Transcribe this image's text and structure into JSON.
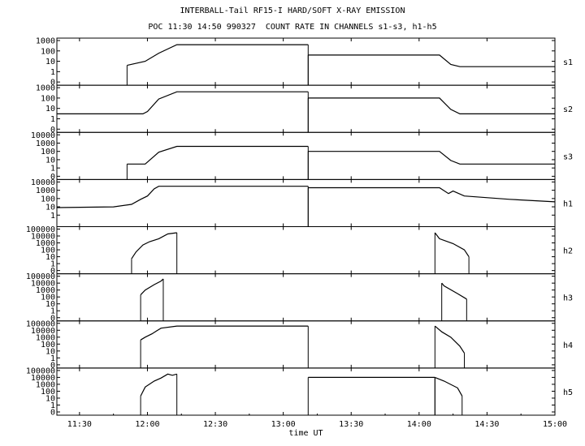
{
  "title": "INTERBALL-Tail RF15-I HARD/SOFT X-RAY EMISSION",
  "subtitle": "POC 11:30 14:50 990327  COUNT RATE IN CHANNELS s1-s3, h1-h5",
  "chart_data": {
    "type": "line",
    "xlabel": "time UT",
    "x_tick_labels": [
      "11:30",
      "12:00",
      "12:30",
      "13:00",
      "13:30",
      "14:00",
      "14:30",
      "15:00"
    ],
    "xlim": [
      "11:20",
      "15:00"
    ],
    "y_scale": "log",
    "grid": false,
    "panels": [
      {
        "name": "s1",
        "yticks": [
          "1000",
          "100",
          "10",
          "1",
          "0"
        ],
        "segments": [
          {
            "x": [
              "11:51",
              "11:59",
              "12:05",
              "12:13",
              "13:11"
            ],
            "y": [
              4,
              10,
              60,
              400,
              400
            ]
          },
          {
            "x": [
              "13:11",
              "14:09",
              "14:14",
              "14:18",
              "15:00"
            ],
            "y": [
              40,
              40,
              5,
              3,
              3
            ]
          }
        ]
      },
      {
        "name": "s2",
        "yticks": [
          "1000",
          "100",
          "10",
          "1",
          "0"
        ],
        "segments": [
          {
            "x": [
              "11:20",
              "11:40",
              "11:58",
              "12:00",
              "12:05",
              "12:13",
              "13:11"
            ],
            "y": [
              3,
              3,
              3,
              5,
              80,
              400,
              400
            ]
          },
          {
            "x": [
              "13:11",
              "14:09",
              "14:14",
              "14:18",
              "15:00"
            ],
            "y": [
              100,
              100,
              8,
              3,
              3
            ]
          }
        ]
      },
      {
        "name": "s3",
        "yticks": [
          "10000",
          "1000",
          "100",
          "10",
          "1",
          "0"
        ],
        "segments": [
          {
            "x": [
              "11:51",
              "11:59",
              "12:05",
              "12:13",
              "13:11"
            ],
            "y": [
              3,
              3,
              80,
              400,
              400
            ]
          },
          {
            "x": [
              "13:11",
              "14:09",
              "14:14",
              "14:18",
              "15:00"
            ],
            "y": [
              100,
              100,
              8,
              3,
              3
            ]
          }
        ]
      },
      {
        "name": "h1",
        "yticks": [
          "10000",
          "1000",
          "100",
          "10",
          "1"
        ],
        "segments": [
          {
            "x": [
              "11:20",
              "11:45",
              "11:53",
              "11:57",
              "12:00",
              "12:03",
              "12:05",
              "13:11"
            ],
            "y": [
              8,
              10,
              20,
              80,
              200,
              1500,
              3000,
              3000
            ]
          },
          {
            "x": [
              "13:11",
              "14:09",
              "14:13",
              "14:15",
              "14:20",
              "14:40",
              "15:00"
            ],
            "y": [
              2000,
              2000,
              400,
              800,
              200,
              80,
              40
            ]
          }
        ]
      },
      {
        "name": "h2",
        "yticks": [
          "100000",
          "10000",
          "1000",
          "100",
          "10",
          "1",
          "0"
        ],
        "segments": [
          {
            "x": [
              "11:53",
              "11:55",
              "11:58",
              "12:01",
              "12:05",
              "12:09",
              "12:13"
            ],
            "y": [
              5,
              50,
              500,
              1500,
              4000,
              20000,
              30000
            ]
          },
          {
            "x": [
              "14:07",
              "14:09",
              "14:15",
              "14:20",
              "14:22"
            ],
            "y": [
              30000,
              4000,
              800,
              100,
              10
            ]
          }
        ]
      },
      {
        "name": "h3",
        "yticks": [
          "100000",
          "10000",
          "1000",
          "100",
          "10",
          "1",
          "0"
        ],
        "segments": [
          {
            "x": [
              "11:57",
              "11:59",
              "12:03",
              "12:06",
              "12:07"
            ],
            "y": [
              200,
              1000,
              6000,
              20000,
              40000
            ]
          },
          {
            "x": [
              "14:10",
              "14:11",
              "14:17",
              "14:21"
            ],
            "y": [
              10000,
              4000,
              300,
              50
            ]
          }
        ]
      },
      {
        "name": "h4",
        "yticks": [
          "100000",
          "10000",
          "1000",
          "100",
          "10",
          "1",
          "0"
        ],
        "segments": [
          {
            "x": [
              "11:57",
              "11:59",
              "12:02",
              "12:04",
              "12:06",
              "12:13",
              "13:11"
            ],
            "y": [
              400,
              1000,
              3000,
              8000,
              20000,
              40000,
              40000
            ]
          },
          {
            "x": [
              "14:07",
              "14:10",
              "14:14",
              "14:18",
              "14:20"
            ],
            "y": [
              40000,
              6000,
              1000,
              50,
              5
            ]
          }
        ]
      },
      {
        "name": "h5",
        "yticks": [
          "100000",
          "10000",
          "1000",
          "100",
          "10",
          "1",
          "0"
        ],
        "segments": [
          {
            "x": [
              "11:57",
              "11:59",
              "12:03",
              "12:06",
              "12:09",
              "12:11",
              "12:13"
            ],
            "y": [
              20,
              400,
              3000,
              8000,
              30000,
              20000,
              30000
            ]
          },
          {
            "x": [
              "13:11",
              "14:07"
            ],
            "y": [
              10000,
              10000
            ]
          },
          {
            "x": [
              "14:07",
              "14:11",
              "14:17",
              "14:19"
            ],
            "y": [
              10000,
              3000,
              300,
              20
            ]
          }
        ]
      }
    ]
  }
}
